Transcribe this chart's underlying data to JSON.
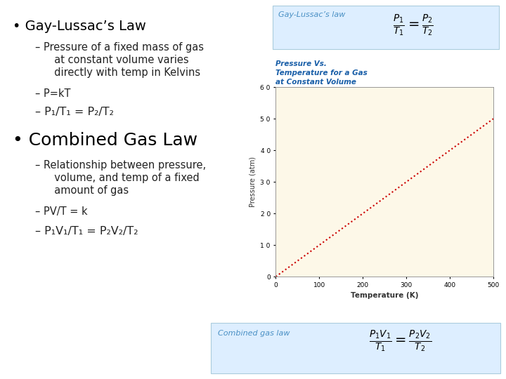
{
  "bg_color": "#ffffff",
  "bullet1": "Gay-Lussac’s Law",
  "sub1a_line1": "– Pressure of a fixed mass of gas",
  "sub1a_line2": "  at constant volume varies",
  "sub1a_line3": "  directly with temp in Kelvins",
  "sub1b": "– P=kT",
  "sub1c": "– P₁/T₁ = P₂/T₂",
  "bullet2": "Combined Gas Law",
  "sub2a_line1": "– Relationship between pressure,",
  "sub2a_line2": "  volume, and temp of a fixed",
  "sub2a_line3": "  amount of gas",
  "sub2b": "– PV/T = k",
  "sub2c": "– P₁V₁/T₁ = P₂V₂/T₂",
  "formula_box1_label": "Gay-Lussac’s law",
  "formula_box2_label": "Combined gas law",
  "graph_title": "Pressure Vs.\nTemperature for a Gas\nat Constant Volume",
  "graph_xlabel": "Temperature (K)",
  "graph_ylabel": "Pressure (atm)",
  "graph_xlim": [
    0,
    500
  ],
  "graph_ylim": [
    0,
    6
  ],
  "graph_xticks": [
    0,
    100,
    200,
    300,
    400,
    500
  ],
  "graph_ytick_vals": [
    0,
    1,
    2,
    3,
    4,
    5,
    6
  ],
  "graph_ytick_labels": [
    "0",
    "1 0",
    "2 0",
    "3 0",
    "4 0",
    "5 0",
    "6 0"
  ],
  "graph_line_color": "#cc0000",
  "graph_bg_color": "#fdf8e8",
  "graph_title_color": "#1a5fa8",
  "label_color": "#4a90c4",
  "box_bg_color": "#ddeeff",
  "box_edge_color": "#aaccdd",
  "bullet_color": "#000000",
  "sub_color": "#222222",
  "bullet1_fontsize": 14,
  "bullet2_fontsize": 18,
  "sub_fontsize": 10.5
}
